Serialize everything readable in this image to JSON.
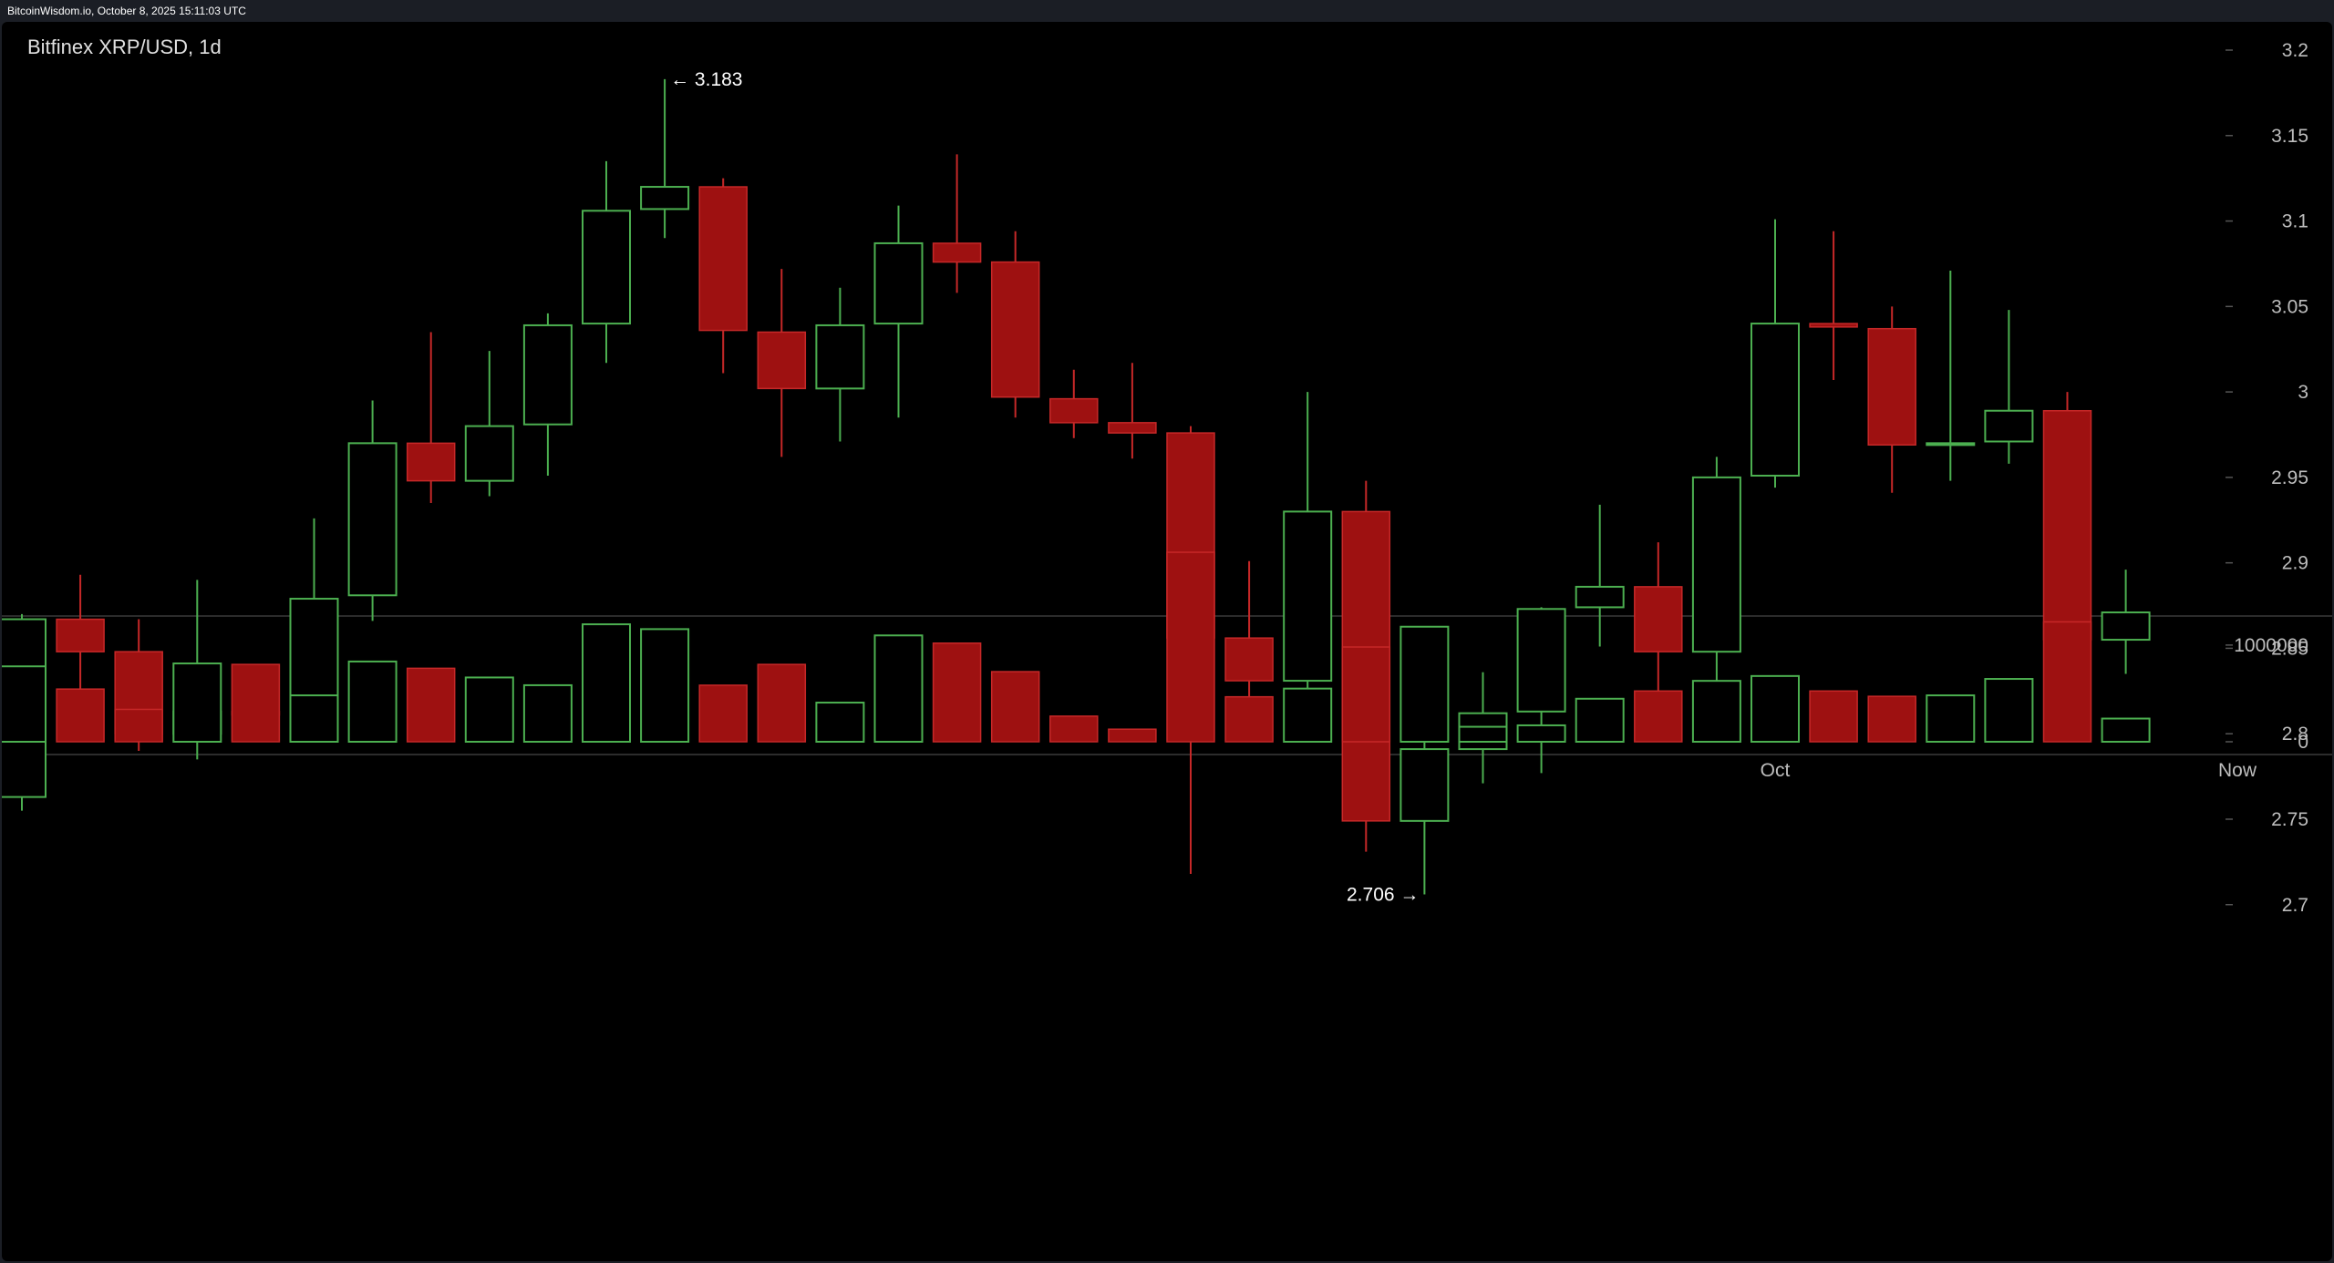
{
  "header": {
    "source_text": "BitcoinWisdom.io, October 8, 2025 15:11:03 UTC"
  },
  "chart_data": {
    "type": "candlestick",
    "title": "Bitfinex XRP/USD, 1d",
    "price_axis": {
      "ticks": [
        2.7,
        2.75,
        2.8,
        2.85,
        2.9,
        2.95,
        3.0,
        3.05,
        3.1,
        3.15,
        3.2
      ],
      "tick_labels": [
        "2.7",
        "2.75",
        "2.8",
        "2.85",
        "2.9",
        "2.95",
        "3",
        "3.05",
        "3.1",
        "3.15",
        "3.2"
      ],
      "ylim": [
        2.65,
        3.23
      ]
    },
    "volume_axis": {
      "ticks": [
        0,
        1000000
      ],
      "tick_labels": [
        "0",
        "1000000"
      ],
      "ylim": [
        0,
        1800000
      ]
    },
    "x_labels": [
      "Oct",
      "Now"
    ],
    "annotations": [
      {
        "label": "← 3.183",
        "candle": 11,
        "price": 3.183,
        "side": "right"
      },
      {
        "label": "2.706 →",
        "candle": 24,
        "price": 2.706,
        "side": "left"
      }
    ],
    "colors": {
      "up": "#4caf50",
      "down": "#9e1111",
      "down_edge": "#c62828",
      "axis_text": "#bdbdbd",
      "grid_tick": "#555555"
    },
    "candles": [
      {
        "o": 2.763,
        "h": 2.87,
        "l": 2.755,
        "c": 2.867
      },
      {
        "o": 2.867,
        "h": 2.893,
        "l": 2.817,
        "c": 2.848
      },
      {
        "o": 2.848,
        "h": 2.867,
        "l": 2.79,
        "c": 2.8
      },
      {
        "o": 2.8,
        "h": 2.89,
        "l": 2.785,
        "c": 2.813
      },
      {
        "o": 2.813,
        "h": 2.827,
        "l": 2.8,
        "c": 2.811
      },
      {
        "o": 2.811,
        "h": 2.926,
        "l": 2.811,
        "c": 2.879
      },
      {
        "o": 2.881,
        "h": 2.995,
        "l": 2.866,
        "c": 2.97
      },
      {
        "o": 2.97,
        "h": 3.035,
        "l": 2.935,
        "c": 2.948
      },
      {
        "o": 2.948,
        "h": 3.024,
        "l": 2.939,
        "c": 2.98
      },
      {
        "o": 2.981,
        "h": 3.046,
        "l": 2.951,
        "c": 3.039
      },
      {
        "o": 3.04,
        "h": 3.135,
        "l": 3.017,
        "c": 3.106
      },
      {
        "o": 3.107,
        "h": 3.183,
        "l": 3.09,
        "c": 3.12
      },
      {
        "o": 3.12,
        "h": 3.125,
        "l": 3.011,
        "c": 3.036
      },
      {
        "o": 3.035,
        "h": 3.072,
        "l": 2.962,
        "c": 3.002
      },
      {
        "o": 3.002,
        "h": 3.061,
        "l": 2.971,
        "c": 3.039
      },
      {
        "o": 3.04,
        "h": 3.109,
        "l": 2.985,
        "c": 3.087
      },
      {
        "o": 3.087,
        "h": 3.139,
        "l": 3.058,
        "c": 3.076
      },
      {
        "o": 3.076,
        "h": 3.094,
        "l": 2.985,
        "c": 2.997
      },
      {
        "o": 2.996,
        "h": 3.013,
        "l": 2.973,
        "c": 2.982
      },
      {
        "o": 2.982,
        "h": 3.017,
        "l": 2.961,
        "c": 2.976
      },
      {
        "o": 2.976,
        "h": 2.98,
        "l": 2.718,
        "c": 2.856
      },
      {
        "o": 2.856,
        "h": 2.901,
        "l": 2.806,
        "c": 2.831
      },
      {
        "o": 2.831,
        "h": 3.0,
        "l": 2.798,
        "c": 2.93
      },
      {
        "o": 2.93,
        "h": 2.948,
        "l": 2.731,
        "c": 2.749
      },
      {
        "o": 2.749,
        "h": 2.815,
        "l": 2.706,
        "c": 2.791
      },
      {
        "o": 2.791,
        "h": 2.836,
        "l": 2.771,
        "c": 2.812
      },
      {
        "o": 2.813,
        "h": 2.874,
        "l": 2.777,
        "c": 2.873
      },
      {
        "o": 2.874,
        "h": 2.934,
        "l": 2.851,
        "c": 2.886
      },
      {
        "o": 2.886,
        "h": 2.912,
        "l": 2.819,
        "c": 2.848
      },
      {
        "o": 2.848,
        "h": 2.962,
        "l": 2.813,
        "c": 2.95
      },
      {
        "o": 2.951,
        "h": 3.101,
        "l": 2.944,
        "c": 3.04
      },
      {
        "o": 3.04,
        "h": 3.094,
        "l": 3.007,
        "c": 3.038
      },
      {
        "o": 3.037,
        "h": 3.05,
        "l": 2.941,
        "c": 2.969
      },
      {
        "o": 2.969,
        "h": 3.071,
        "l": 2.948,
        "c": 2.97
      },
      {
        "o": 2.971,
        "h": 3.048,
        "l": 2.958,
        "c": 2.989
      },
      {
        "o": 2.989,
        "h": 3.0,
        "l": 2.842,
        "c": 2.855
      },
      {
        "o": 2.855,
        "h": 2.896,
        "l": 2.835,
        "c": 2.871
      }
    ],
    "volumes": [
      {
        "v": 780000,
        "up": true
      },
      {
        "v": 545000,
        "up": false
      },
      {
        "v": 335000,
        "up": false
      },
      {
        "v": 810000,
        "up": true
      },
      {
        "v": 800000,
        "up": false
      },
      {
        "v": 480000,
        "up": true
      },
      {
        "v": 830000,
        "up": true
      },
      {
        "v": 760000,
        "up": false
      },
      {
        "v": 665000,
        "up": true
      },
      {
        "v": 585000,
        "up": true
      },
      {
        "v": 1215000,
        "up": true
      },
      {
        "v": 1165000,
        "up": true
      },
      {
        "v": 585000,
        "up": false
      },
      {
        "v": 800000,
        "up": false
      },
      {
        "v": 405000,
        "up": true
      },
      {
        "v": 1100000,
        "up": true
      },
      {
        "v": 1020000,
        "up": false
      },
      {
        "v": 725000,
        "up": false
      },
      {
        "v": 265000,
        "up": false
      },
      {
        "v": 130000,
        "up": false
      },
      {
        "v": 1960000,
        "up": false
      },
      {
        "v": 465000,
        "up": false
      },
      {
        "v": 550000,
        "up": true
      },
      {
        "v": 980000,
        "up": false
      },
      {
        "v": 1190000,
        "up": true
      },
      {
        "v": 155000,
        "up": true
      },
      {
        "v": 170000,
        "up": true
      },
      {
        "v": 445000,
        "up": true
      },
      {
        "v": 525000,
        "up": false
      },
      {
        "v": 630000,
        "up": true
      },
      {
        "v": 680000,
        "up": true
      },
      {
        "v": 525000,
        "up": false
      },
      {
        "v": 470000,
        "up": false
      },
      {
        "v": 480000,
        "up": true
      },
      {
        "v": 650000,
        "up": true
      },
      {
        "v": 1240000,
        "up": false
      },
      {
        "v": 240000,
        "up": true
      }
    ]
  }
}
